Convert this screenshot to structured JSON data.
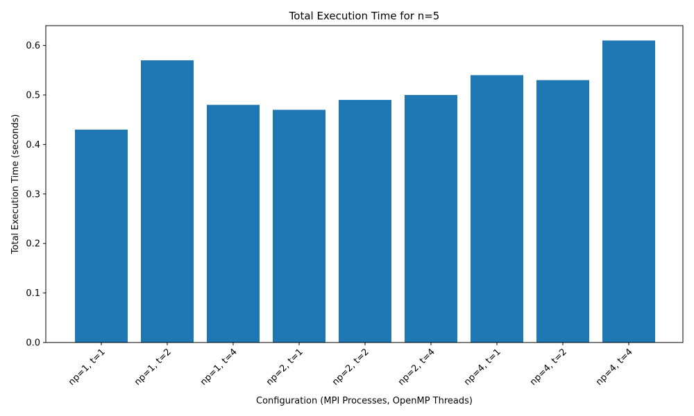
{
  "chart_data": {
    "type": "bar",
    "title": "Total Execution Time for n=5",
    "xlabel": "Configuration (MPI Processes, OpenMP Threads)",
    "ylabel": "Total Execution Time (seconds)",
    "categories": [
      "np=1, t=1",
      "np=1, t=2",
      "np=1, t=4",
      "np=2, t=1",
      "np=2, t=2",
      "np=2, t=4",
      "np=4, t=1",
      "np=4, t=2",
      "np=4, t=4"
    ],
    "values": [
      0.43,
      0.57,
      0.48,
      0.47,
      0.49,
      0.5,
      0.54,
      0.53,
      0.61
    ],
    "ylim": [
      0,
      0.64
    ],
    "yticks": [
      "0.0",
      "0.1",
      "0.2",
      "0.3",
      "0.4",
      "0.5",
      "0.6"
    ],
    "bar_color": "#1f77b4",
    "grid": false,
    "legend": "none"
  }
}
